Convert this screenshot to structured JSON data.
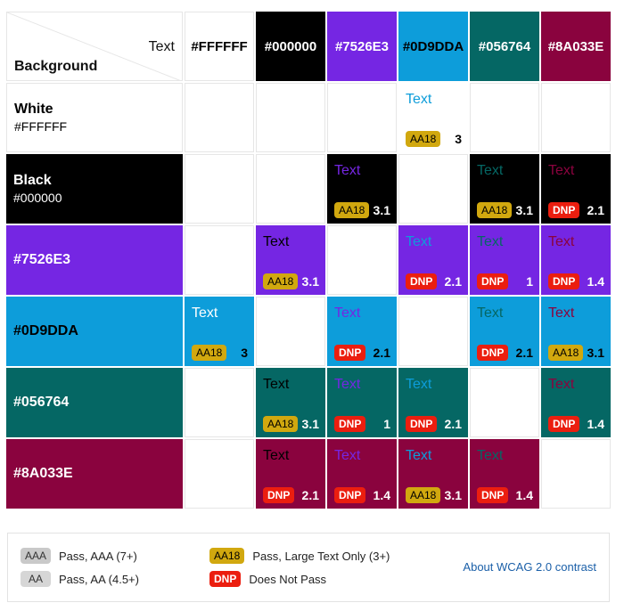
{
  "header": {
    "corner_text": "Text",
    "corner_background": "Background",
    "columns": [
      {
        "label": "#FFFFFF",
        "bg": "#FFFFFF",
        "fg": "#000000"
      },
      {
        "label": "#000000",
        "bg": "#000000",
        "fg": "#FFFFFF"
      },
      {
        "label": "#7526E3",
        "bg": "#7526E3",
        "fg": "#FFFFFF"
      },
      {
        "label": "#0D9DDA",
        "bg": "#0D9DDA",
        "fg": "#000000"
      },
      {
        "label": "#056764",
        "bg": "#056764",
        "fg": "#FFFFFF"
      },
      {
        "label": "#8A033E",
        "bg": "#8A033E",
        "fg": "#FFFFFF"
      }
    ]
  },
  "rows": [
    {
      "name": "White",
      "hex": "#FFFFFF",
      "bg": "#FFFFFF",
      "fg": "#000000",
      "cells": [
        null,
        null,
        null,
        {
          "sample": "Text",
          "color": "#0D9DDA",
          "badge": "AA18",
          "ratio": "3"
        },
        null,
        null
      ]
    },
    {
      "name": "Black",
      "hex": "#000000",
      "bg": "#000000",
      "fg": "#FFFFFF",
      "cells": [
        null,
        null,
        {
          "sample": "Text",
          "color": "#7526E3",
          "badge": "AA18",
          "ratio": "3.1"
        },
        null,
        {
          "sample": "Text",
          "color": "#056764",
          "badge": "AA18",
          "ratio": "3.1"
        },
        {
          "sample": "Text",
          "color": "#8A033E",
          "badge": "DNP",
          "ratio": "2.1"
        }
      ]
    },
    {
      "name": "#7526E3",
      "hex": "",
      "bg": "#7526E3",
      "fg": "#FFFFFF",
      "cells": [
        null,
        {
          "sample": "Text",
          "color": "#000000",
          "badge": "AA18",
          "ratio": "3.1"
        },
        null,
        {
          "sample": "Text",
          "color": "#0D9DDA",
          "badge": "DNP",
          "ratio": "2.1"
        },
        {
          "sample": "Text",
          "color": "#056764",
          "badge": "DNP",
          "ratio": "1"
        },
        {
          "sample": "Text",
          "color": "#8A033E",
          "badge": "DNP",
          "ratio": "1.4"
        }
      ]
    },
    {
      "name": "#0D9DDA",
      "hex": "",
      "bg": "#0D9DDA",
      "fg": "#000000",
      "cells": [
        {
          "sample": "Text",
          "color": "#FFFFFF",
          "badge": "AA18",
          "ratio": "3"
        },
        null,
        {
          "sample": "Text",
          "color": "#7526E3",
          "badge": "DNP",
          "ratio": "2.1"
        },
        null,
        {
          "sample": "Text",
          "color": "#056764",
          "badge": "DNP",
          "ratio": "2.1"
        },
        {
          "sample": "Text",
          "color": "#8A033E",
          "badge": "AA18",
          "ratio": "3.1"
        }
      ]
    },
    {
      "name": "#056764",
      "hex": "",
      "bg": "#056764",
      "fg": "#FFFFFF",
      "cells": [
        null,
        {
          "sample": "Text",
          "color": "#000000",
          "badge": "AA18",
          "ratio": "3.1"
        },
        {
          "sample": "Text",
          "color": "#7526E3",
          "badge": "DNP",
          "ratio": "1"
        },
        {
          "sample": "Text",
          "color": "#0D9DDA",
          "badge": "DNP",
          "ratio": "2.1"
        },
        null,
        {
          "sample": "Text",
          "color": "#8A033E",
          "badge": "DNP",
          "ratio": "1.4"
        }
      ]
    },
    {
      "name": "#8A033E",
      "hex": "",
      "bg": "#8A033E",
      "fg": "#FFFFFF",
      "cells": [
        null,
        {
          "sample": "Text",
          "color": "#000000",
          "badge": "DNP",
          "ratio": "2.1"
        },
        {
          "sample": "Text",
          "color": "#7526E3",
          "badge": "DNP",
          "ratio": "1.4"
        },
        {
          "sample": "Text",
          "color": "#0D9DDA",
          "badge": "AA18",
          "ratio": "3.1"
        },
        {
          "sample": "Text",
          "color": "#056764",
          "badge": "DNP",
          "ratio": "1.4"
        },
        null
      ]
    }
  ],
  "legend": {
    "aaa": {
      "badge": "AAA",
      "text": "Pass, AAA (7+)"
    },
    "aa": {
      "badge": "AA",
      "text": "Pass, AA (4.5+)"
    },
    "aa18": {
      "badge": "AA18",
      "text": "Pass, Large Text Only (3+)"
    },
    "dnp": {
      "badge": "DNP",
      "text": "Does Not Pass"
    },
    "link": "About WCAG 2.0 contrast"
  }
}
